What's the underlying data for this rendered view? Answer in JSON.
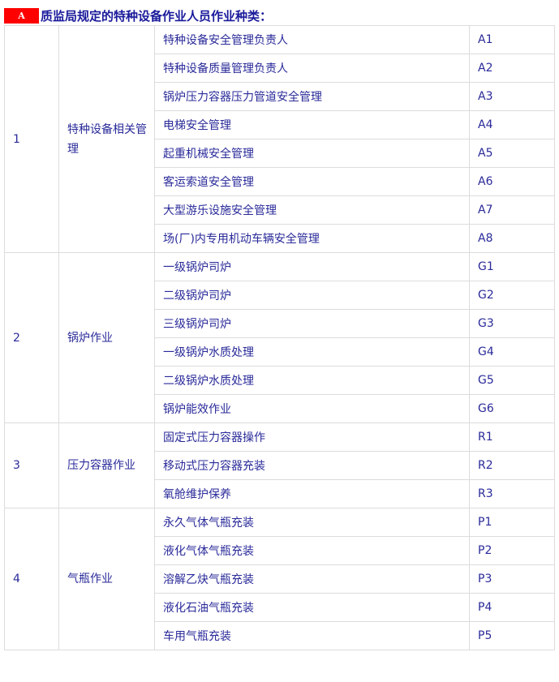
{
  "header": {
    "badge": "A",
    "title": "质监局规定的特种设备作业人员作业种类："
  },
  "groups": [
    {
      "no": "1",
      "category": "特种设备相关管理",
      "items": [
        [
          "特种设备安全管理负责人",
          "A1"
        ],
        [
          "特种设备质量管理负责人",
          "A2"
        ],
        [
          "锅炉压力容器压力管道安全管理",
          "A3"
        ],
        [
          "电梯安全管理",
          "A4"
        ],
        [
          "起重机械安全管理",
          "A5"
        ],
        [
          "客运索道安全管理",
          "A6"
        ],
        [
          "大型游乐设施安全管理",
          "A7"
        ],
        [
          "场(厂)内专用机动车辆安全管理",
          "A8"
        ]
      ]
    },
    {
      "no": "2",
      "category": "锅炉作业",
      "items": [
        [
          "一级锅炉司炉",
          "G1"
        ],
        [
          "二级锅炉司炉",
          "G2"
        ],
        [
          "三级锅炉司炉",
          "G3"
        ],
        [
          "一级锅炉水质处理",
          "G4"
        ],
        [
          "二级锅炉水质处理",
          "G5"
        ],
        [
          "锅炉能效作业",
          "G6"
        ]
      ]
    },
    {
      "no": "3",
      "category": "压力容器作业",
      "items": [
        [
          "固定式压力容器操作",
          "R1"
        ],
        [
          "移动式压力容器充装",
          "R2"
        ],
        [
          "氧舱维护保养",
          "R3"
        ]
      ]
    },
    {
      "no": "4",
      "category": "气瓶作业",
      "items": [
        [
          "永久气体气瓶充装",
          "P1"
        ],
        [
          "液化气体气瓶充装",
          "P2"
        ],
        [
          "溶解乙炔气瓶充装",
          "P3"
        ],
        [
          "液化石油气瓶充装",
          "P4"
        ],
        [
          "车用气瓶充装",
          "P5"
        ]
      ]
    }
  ]
}
